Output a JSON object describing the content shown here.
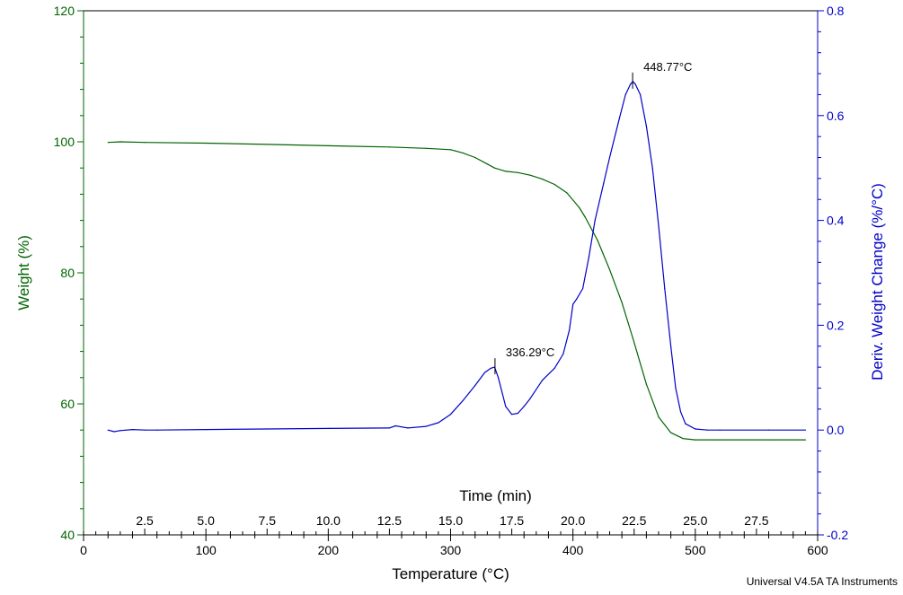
{
  "chart_data": {
    "type": "line",
    "title": "",
    "xlabel": "Temperature (°C)",
    "xlim": [
      0,
      600
    ],
    "x_ticks": [
      0,
      100,
      200,
      300,
      400,
      500,
      600
    ],
    "x_tick_labels": [
      "0",
      "100",
      "200",
      "300",
      "400",
      "500",
      "600"
    ],
    "ylabel_left": "Weight (%)",
    "ylim_left": [
      40,
      120
    ],
    "y_ticks_left": [
      40,
      60,
      80,
      100,
      120
    ],
    "y_tick_labels_left": [
      "40",
      "60",
      "80",
      "100",
      "120"
    ],
    "ylabel_right": "Deriv. Weight Change (%/°C)",
    "ylim_right": [
      -0.2,
      0.8
    ],
    "y_ticks_right": [
      -0.2,
      0.0,
      0.2,
      0.4,
      0.6,
      0.8
    ],
    "y_tick_labels_right": [
      "-0.2",
      "0.0",
      "0.2",
      "0.4",
      "0.6",
      "0.8"
    ],
    "time_axis": {
      "label": "Time (min)",
      "temp_per_min": 20,
      "temp_offset": 0,
      "ticks": [
        2.5,
        5.0,
        7.5,
        10.0,
        12.5,
        15.0,
        17.5,
        20.0,
        22.5,
        25.0,
        27.5
      ],
      "tick_labels": [
        "2.5",
        "5.0",
        "7.5",
        "10.0",
        "12.5",
        "15.0",
        "17.5",
        "20.0",
        "22.5",
        "25.0",
        "27.5"
      ]
    },
    "series": [
      {
        "name": "Weight",
        "axis": "left",
        "color": "#006400",
        "x": [
          20,
          30,
          50,
          100,
          150,
          200,
          250,
          280,
          300,
          310,
          320,
          330,
          336,
          345,
          355,
          365,
          375,
          385,
          395,
          405,
          410,
          420,
          430,
          440,
          449,
          460,
          470,
          480,
          490,
          500,
          520,
          560,
          590
        ],
        "y": [
          99.9,
          100.0,
          99.9,
          99.8,
          99.6,
          99.4,
          99.2,
          99.0,
          98.8,
          98.3,
          97.6,
          96.6,
          96.0,
          95.5,
          95.3,
          94.9,
          94.3,
          93.5,
          92.2,
          90.0,
          88.5,
          85.0,
          80.5,
          75.5,
          70.0,
          63.0,
          58.0,
          55.6,
          54.7,
          54.5,
          54.5,
          54.5,
          54.5
        ]
      },
      {
        "name": "Deriv. Weight Change",
        "axis": "right",
        "color": "#0000c8",
        "x": [
          20,
          25,
          30,
          40,
          50,
          60,
          100,
          150,
          200,
          250,
          255,
          260,
          265,
          270,
          280,
          290,
          300,
          310,
          320,
          328,
          333,
          336,
          339,
          345,
          350,
          355,
          360,
          365,
          375,
          385,
          392,
          397,
          400,
          403,
          408,
          413,
          418,
          425,
          430,
          438,
          443,
          447,
          449,
          451,
          455,
          460,
          465,
          470,
          475,
          480,
          484,
          488,
          492,
          500,
          510,
          520,
          560,
          590
        ],
        "y": [
          0.0,
          -0.003,
          -0.001,
          0.001,
          0.0,
          0.0,
          0.001,
          0.002,
          0.003,
          0.004,
          0.008,
          0.006,
          0.004,
          0.005,
          0.007,
          0.014,
          0.03,
          0.056,
          0.085,
          0.11,
          0.118,
          0.12,
          0.1,
          0.045,
          0.03,
          0.032,
          0.045,
          0.06,
          0.095,
          0.118,
          0.145,
          0.19,
          0.24,
          0.25,
          0.27,
          0.33,
          0.4,
          0.47,
          0.52,
          0.595,
          0.64,
          0.66,
          0.665,
          0.66,
          0.64,
          0.58,
          0.5,
          0.39,
          0.27,
          0.16,
          0.08,
          0.035,
          0.012,
          0.002,
          0.0,
          0.0,
          0.0,
          0.0
        ]
      }
    ],
    "annotations": [
      {
        "text": "336.29°C",
        "x": 336.29,
        "y": 0.12,
        "axis": "right"
      },
      {
        "text": "448.77°C",
        "x": 448.77,
        "y": 0.665,
        "axis": "right"
      }
    ]
  },
  "footer": {
    "text": "Universal V4.5A TA Instruments"
  }
}
